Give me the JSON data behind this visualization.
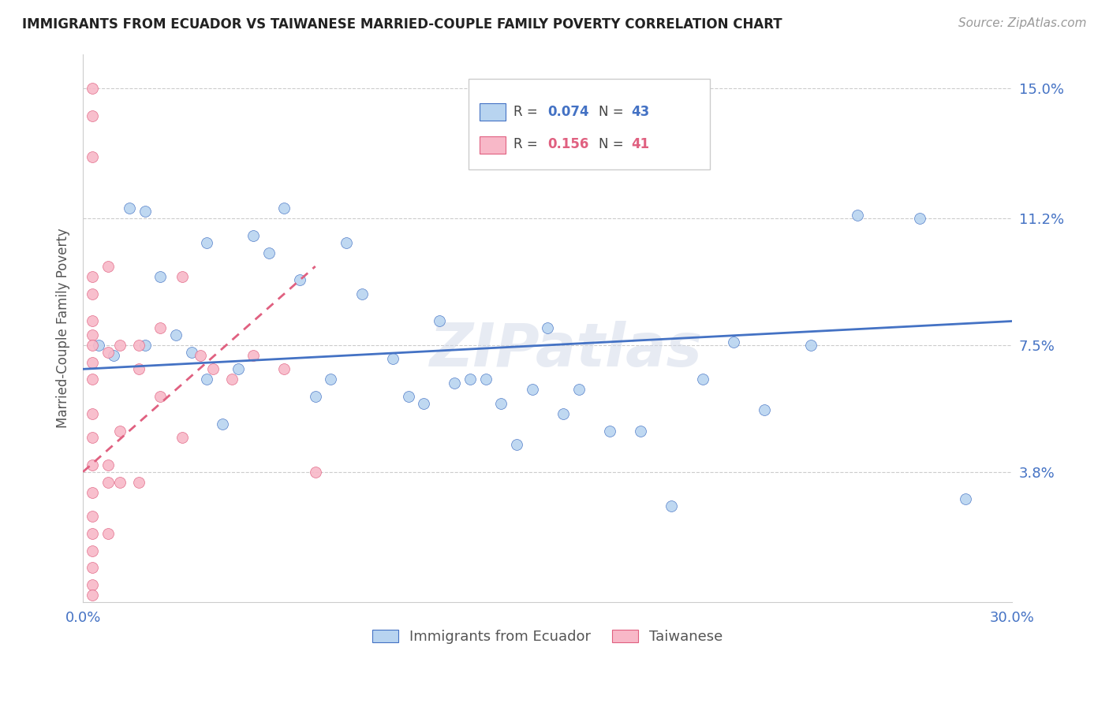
{
  "title": "IMMIGRANTS FROM ECUADOR VS TAIWANESE MARRIED-COUPLE FAMILY POVERTY CORRELATION CHART",
  "source": "Source: ZipAtlas.com",
  "ylabel": "Married-Couple Family Poverty",
  "xlim": [
    0.0,
    0.3
  ],
  "ylim": [
    0.0,
    0.16
  ],
  "xtick_positions": [
    0.0,
    0.05,
    0.1,
    0.15,
    0.2,
    0.25,
    0.3
  ],
  "xtick_labels": [
    "0.0%",
    "",
    "",
    "",
    "",
    "",
    "30.0%"
  ],
  "ytick_vals": [
    0.15,
    0.112,
    0.075,
    0.038
  ],
  "ytick_labels": [
    "15.0%",
    "11.2%",
    "7.5%",
    "3.8%"
  ],
  "watermark": "ZIPatlas",
  "legend_label1": "Immigrants from Ecuador",
  "legend_label2": "Taiwanese",
  "blue_color": "#b8d4f0",
  "pink_color": "#f8b8c8",
  "line_blue": "#4472c4",
  "line_pink": "#e06080",
  "dot_size": 100,
  "blue_scatter_x": [
    0.005,
    0.01,
    0.015,
    0.02,
    0.02,
    0.025,
    0.03,
    0.035,
    0.04,
    0.04,
    0.045,
    0.05,
    0.055,
    0.06,
    0.065,
    0.07,
    0.075,
    0.08,
    0.085,
    0.09,
    0.1,
    0.105,
    0.11,
    0.115,
    0.12,
    0.125,
    0.13,
    0.135,
    0.14,
    0.145,
    0.15,
    0.155,
    0.16,
    0.17,
    0.18,
    0.19,
    0.2,
    0.21,
    0.22,
    0.235,
    0.25,
    0.27,
    0.285
  ],
  "blue_scatter_y": [
    0.075,
    0.072,
    0.115,
    0.114,
    0.075,
    0.095,
    0.078,
    0.073,
    0.065,
    0.105,
    0.052,
    0.068,
    0.107,
    0.102,
    0.115,
    0.094,
    0.06,
    0.065,
    0.105,
    0.09,
    0.071,
    0.06,
    0.058,
    0.082,
    0.064,
    0.065,
    0.065,
    0.058,
    0.046,
    0.062,
    0.08,
    0.055,
    0.062,
    0.05,
    0.05,
    0.028,
    0.065,
    0.076,
    0.056,
    0.075,
    0.113,
    0.112,
    0.03
  ],
  "pink_scatter_x": [
    0.003,
    0.003,
    0.003,
    0.003,
    0.003,
    0.003,
    0.003,
    0.003,
    0.003,
    0.003,
    0.003,
    0.003,
    0.003,
    0.003,
    0.003,
    0.003,
    0.003,
    0.003,
    0.003,
    0.003,
    0.008,
    0.008,
    0.008,
    0.008,
    0.008,
    0.012,
    0.012,
    0.012,
    0.018,
    0.018,
    0.018,
    0.025,
    0.025,
    0.032,
    0.032,
    0.038,
    0.042,
    0.048,
    0.055,
    0.065,
    0.075
  ],
  "pink_scatter_y": [
    0.15,
    0.142,
    0.13,
    0.095,
    0.09,
    0.082,
    0.078,
    0.075,
    0.07,
    0.065,
    0.055,
    0.048,
    0.04,
    0.032,
    0.025,
    0.02,
    0.015,
    0.01,
    0.005,
    0.002,
    0.098,
    0.073,
    0.04,
    0.035,
    0.02,
    0.075,
    0.05,
    0.035,
    0.075,
    0.068,
    0.035,
    0.08,
    0.06,
    0.095,
    0.048,
    0.072,
    0.068,
    0.065,
    0.072,
    0.068,
    0.038
  ],
  "blue_trend_x": [
    0.0,
    0.3
  ],
  "blue_trend_y": [
    0.068,
    0.082
  ],
  "pink_trend_x": [
    0.0,
    0.075
  ],
  "pink_trend_y": [
    0.038,
    0.098
  ]
}
